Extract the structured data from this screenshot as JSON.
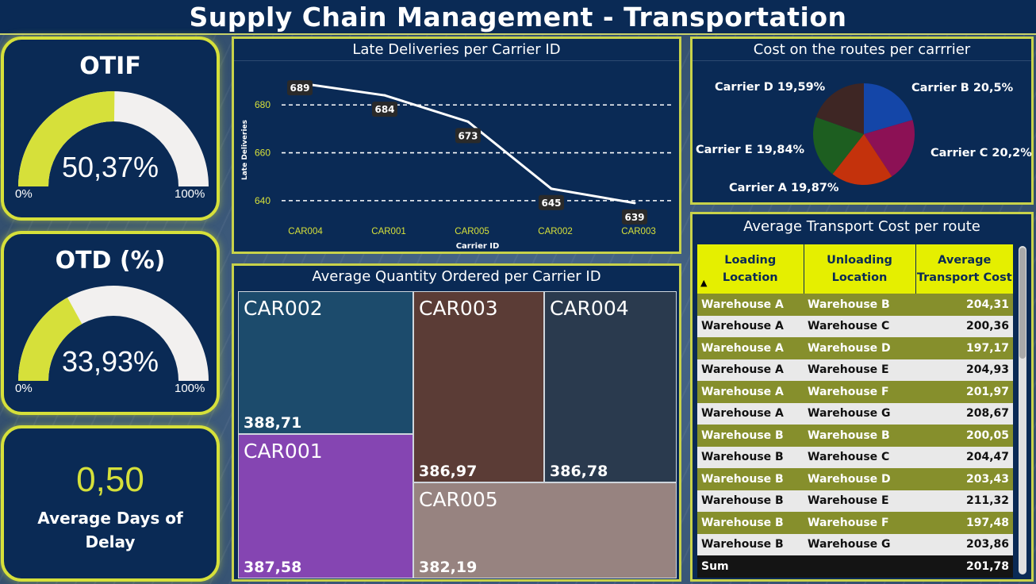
{
  "header": {
    "title": "Supply Chain Management - Transportation"
  },
  "kpis": {
    "otif": {
      "title": "OTIF",
      "value": "50,37%",
      "fraction": 0.5037,
      "min": "0%",
      "max": "100%"
    },
    "otd": {
      "title": "OTD (%)",
      "value": "33,93%",
      "fraction": 0.3393,
      "min": "0%",
      "max": "100%"
    },
    "delay": {
      "value": "0,50",
      "label": "Average Days of Delay"
    }
  },
  "colors": {
    "accent": "#d6e03a",
    "panel_bg": "#0a2a55",
    "gauge_track": "#f2f0ef"
  },
  "chart_data": [
    {
      "type": "line",
      "title": "Late Deliveries per Carrier ID",
      "xlabel": "Carrier ID",
      "ylabel": "Late Deliveries",
      "categories": [
        "CAR004",
        "CAR001",
        "CAR005",
        "CAR002",
        "CAR003"
      ],
      "values": [
        689,
        684,
        673,
        645,
        639
      ],
      "data_labels": [
        "689",
        "684",
        "673",
        "645",
        "639"
      ],
      "yticks": [
        "640",
        "660",
        "680"
      ],
      "ylim": [
        632,
        695
      ],
      "grid": true
    },
    {
      "type": "pie",
      "title": "Cost on the routes per carrrier",
      "slices": [
        {
          "name": "Carrier B",
          "pct": 20.5,
          "label": "Carrier B 20,5%",
          "color": "#1446a8"
        },
        {
          "name": "Carrier C",
          "pct": 20.2,
          "label": "Carrier C 20,2%",
          "color": "#8c1155"
        },
        {
          "name": "Carrier A",
          "pct": 19.87,
          "label": "Carrier A 19,87%",
          "color": "#c4320c"
        },
        {
          "name": "Carrier E",
          "pct": 19.84,
          "label": "Carrier E 19,84%",
          "color": "#1d5e20"
        },
        {
          "name": "Carrier D",
          "pct": 19.59,
          "label": "Carrier D 19,59%",
          "color": "#3e2624"
        }
      ]
    },
    {
      "type": "treemap",
      "title": "Average Quantity Ordered per Carrier ID",
      "items": [
        {
          "name": "CAR002",
          "value": "388,71",
          "color": "#1c4b6c"
        },
        {
          "name": "CAR001",
          "value": "387,58",
          "color": "#8545b2"
        },
        {
          "name": "CAR003",
          "value": "386,97",
          "color": "#5b3c36"
        },
        {
          "name": "CAR004",
          "value": "386,78",
          "color": "#2a3a4e"
        },
        {
          "name": "CAR005",
          "value": "382,19",
          "color": "#978380"
        }
      ]
    }
  ],
  "cost_table": {
    "title": "Average Transport Cost per route",
    "headers": [
      "Loading Location",
      "Unloading Location",
      "Average Transport Cost"
    ],
    "sort_indicator": "▲",
    "rows": [
      [
        "Warehouse A",
        "Warehouse B",
        "204,31"
      ],
      [
        "Warehouse A",
        "Warehouse C",
        "200,36"
      ],
      [
        "Warehouse A",
        "Warehouse D",
        "197,17"
      ],
      [
        "Warehouse A",
        "Warehouse E",
        "204,93"
      ],
      [
        "Warehouse A",
        "Warehouse F",
        "201,97"
      ],
      [
        "Warehouse A",
        "Warehouse G",
        "208,67"
      ],
      [
        "Warehouse B",
        "Warehouse B",
        "200,05"
      ],
      [
        "Warehouse B",
        "Warehouse C",
        "204,47"
      ],
      [
        "Warehouse B",
        "Warehouse D",
        "203,43"
      ],
      [
        "Warehouse B",
        "Warehouse E",
        "211,32"
      ],
      [
        "Warehouse B",
        "Warehouse F",
        "197,48"
      ],
      [
        "Warehouse B",
        "Warehouse G",
        "203,86"
      ]
    ],
    "sum_label": "Sum",
    "sum_value": "201,78"
  }
}
